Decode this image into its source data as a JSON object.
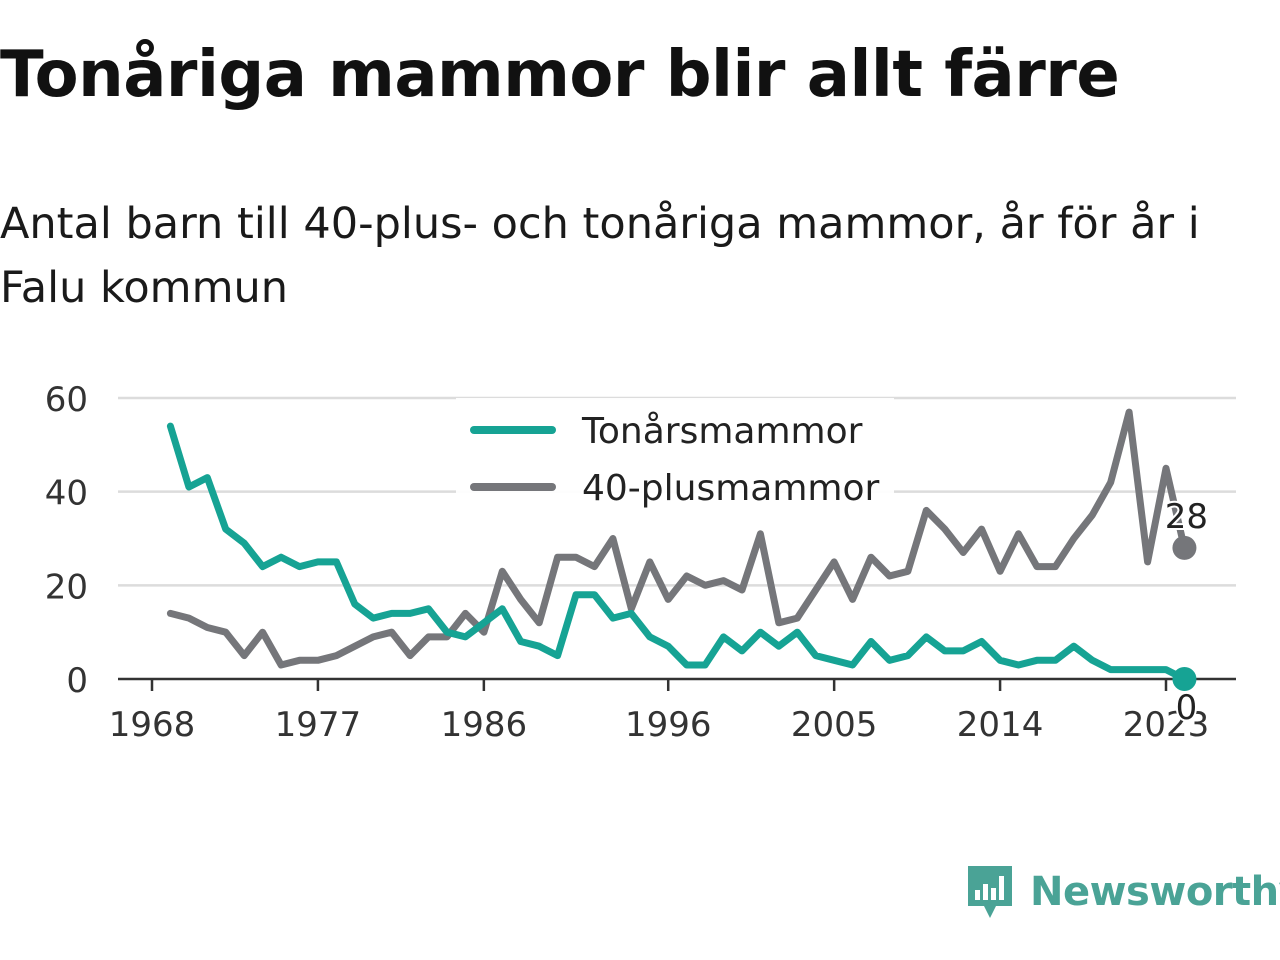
{
  "title": "Tonåriga mammor blir allt färre",
  "subtitle": "Antal barn till 40-plus- och tonåriga mammor, år för år i Falu kommun",
  "brand": {
    "name": "Newsworthy",
    "icon": "newsworthy-logo-icon"
  },
  "chart_data": {
    "type": "line",
    "title": "Tonåriga mammor blir allt färre",
    "subtitle": "Antal barn till 40-plus- och tonåriga mammor, år för år i Falu kommun",
    "x_ticks": [
      1968,
      1977,
      1986,
      1996,
      2005,
      2014,
      2023
    ],
    "y_ticks": [
      0,
      20,
      40,
      60
    ],
    "xlim": [
      1967,
      2027
    ],
    "ylim": [
      0,
      60
    ],
    "grid": true,
    "legend_position": "top-center",
    "x": [
      1969,
      1970,
      1971,
      1972,
      1973,
      1974,
      1975,
      1976,
      1977,
      1978,
      1979,
      1980,
      1981,
      1982,
      1983,
      1984,
      1985,
      1986,
      1987,
      1988,
      1989,
      1990,
      1991,
      1992,
      1993,
      1994,
      1995,
      1996,
      1997,
      1998,
      1999,
      2000,
      2001,
      2002,
      2003,
      2004,
      2005,
      2006,
      2007,
      2008,
      2009,
      2010,
      2011,
      2012,
      2013,
      2014,
      2015,
      2016,
      2017,
      2018,
      2019,
      2020,
      2021,
      2022,
      2023,
      2024
    ],
    "series": [
      {
        "name": "Tonårsmammor",
        "color": "#16a394",
        "values": [
          54,
          41,
          43,
          32,
          29,
          24,
          26,
          24,
          25,
          25,
          16,
          13,
          14,
          14,
          15,
          10,
          9,
          12,
          15,
          8,
          7,
          5,
          18,
          18,
          13,
          14,
          9,
          7,
          3,
          3,
          9,
          6,
          10,
          7,
          10,
          5,
          4,
          3,
          8,
          4,
          5,
          9,
          6,
          6,
          8,
          4,
          3,
          4,
          4,
          7,
          4,
          2,
          2,
          2,
          2,
          0
        ],
        "end_label": "0"
      },
      {
        "name": "40-plusmammor",
        "color": "#75767a",
        "values": [
          14,
          13,
          11,
          10,
          5,
          10,
          3,
          4,
          4,
          5,
          7,
          9,
          10,
          5,
          9,
          9,
          14,
          10,
          23,
          17,
          12,
          26,
          26,
          24,
          30,
          15,
          25,
          17,
          22,
          20,
          21,
          19,
          31,
          12,
          13,
          19,
          25,
          17,
          26,
          22,
          23,
          36,
          32,
          27,
          32,
          23,
          31,
          24,
          24,
          30,
          35,
          42,
          57,
          25,
          45,
          28
        ],
        "end_label": "28"
      }
    ]
  }
}
